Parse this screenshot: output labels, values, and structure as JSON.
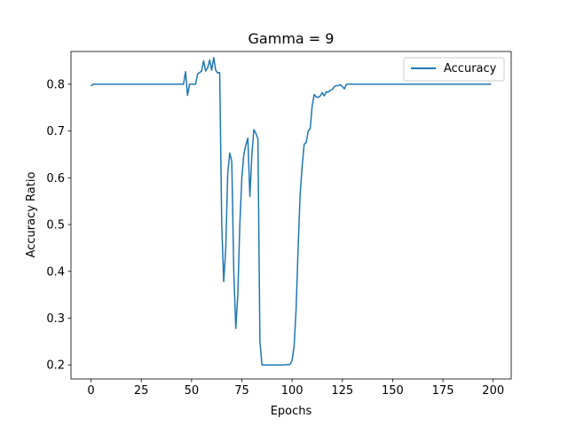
{
  "chart_data": {
    "type": "line",
    "title": "Gamma = 9",
    "xlabel": "Epochs",
    "ylabel": "Accuracy Ratio",
    "xlim": [
      -9.95,
      208.95
    ],
    "ylim": [
      0.17,
      0.87
    ],
    "xticks": [
      0,
      25,
      50,
      75,
      100,
      125,
      150,
      175,
      200
    ],
    "yticks": [
      0.2,
      0.3,
      0.4,
      0.5,
      0.6,
      0.7,
      0.8
    ],
    "ytick_labels": [
      "0.2",
      "0.3",
      "0.4",
      "0.5",
      "0.6",
      "0.7",
      "0.8"
    ],
    "legend_position": "top-right",
    "grid": false,
    "series": [
      {
        "name": "Accuracy",
        "color": "#1f77b4",
        "points": [
          [
            0,
            0.796
          ],
          [
            1,
            0.8
          ],
          [
            10,
            0.8
          ],
          [
            20,
            0.8
          ],
          [
            30,
            0.8
          ],
          [
            40,
            0.8
          ],
          [
            45,
            0.8
          ],
          [
            46,
            0.8
          ],
          [
            47,
            0.827
          ],
          [
            48,
            0.776
          ],
          [
            49,
            0.8
          ],
          [
            50,
            0.8
          ],
          [
            51,
            0.8
          ],
          [
            52,
            0.8
          ],
          [
            53,
            0.822
          ],
          [
            54,
            0.825
          ],
          [
            55,
            0.828
          ],
          [
            56,
            0.85
          ],
          [
            57,
            0.828
          ],
          [
            58,
            0.835
          ],
          [
            59,
            0.852
          ],
          [
            60,
            0.83
          ],
          [
            61,
            0.857
          ],
          [
            62,
            0.83
          ],
          [
            63,
            0.824
          ],
          [
            64,
            0.825
          ],
          [
            65,
            0.5
          ],
          [
            66,
            0.378
          ],
          [
            67,
            0.45
          ],
          [
            68,
            0.61
          ],
          [
            69,
            0.653
          ],
          [
            70,
            0.635
          ],
          [
            71,
            0.4
          ],
          [
            72,
            0.278
          ],
          [
            73,
            0.35
          ],
          [
            74,
            0.5
          ],
          [
            75,
            0.6
          ],
          [
            76,
            0.65
          ],
          [
            77,
            0.67
          ],
          [
            78,
            0.685
          ],
          [
            79,
            0.56
          ],
          [
            80,
            0.65
          ],
          [
            81,
            0.703
          ],
          [
            82,
            0.695
          ],
          [
            83,
            0.683
          ],
          [
            84,
            0.25
          ],
          [
            85,
            0.2
          ],
          [
            90,
            0.2
          ],
          [
            95,
            0.2
          ],
          [
            99,
            0.201
          ],
          [
            100,
            0.21
          ],
          [
            101,
            0.24
          ],
          [
            102,
            0.32
          ],
          [
            103,
            0.45
          ],
          [
            104,
            0.565
          ],
          [
            105,
            0.625
          ],
          [
            106,
            0.672
          ],
          [
            107,
            0.675
          ],
          [
            108,
            0.7
          ],
          [
            109,
            0.705
          ],
          [
            110,
            0.755
          ],
          [
            111,
            0.778
          ],
          [
            112,
            0.773
          ],
          [
            113,
            0.772
          ],
          [
            114,
            0.775
          ],
          [
            115,
            0.782
          ],
          [
            116,
            0.775
          ],
          [
            117,
            0.784
          ],
          [
            118,
            0.783
          ],
          [
            119,
            0.787
          ],
          [
            120,
            0.789
          ],
          [
            121,
            0.795
          ],
          [
            122,
            0.797
          ],
          [
            123,
            0.797
          ],
          [
            124,
            0.799
          ],
          [
            125,
            0.795
          ],
          [
            126,
            0.79
          ],
          [
            127,
            0.8
          ],
          [
            130,
            0.8
          ],
          [
            150,
            0.8
          ],
          [
            175,
            0.8
          ],
          [
            199,
            0.8
          ]
        ]
      }
    ]
  }
}
